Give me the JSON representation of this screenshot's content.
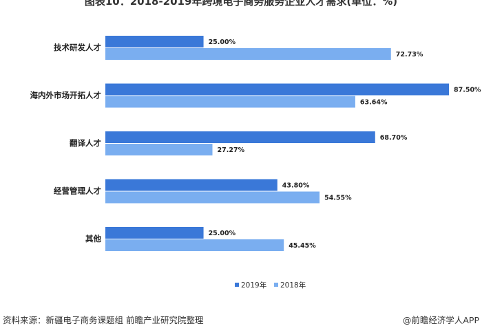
{
  "chart_data": {
    "type": "bar",
    "orientation": "horizontal",
    "title": "图表10：2018-2019年跨境电子商务服务企业人才需求(单位：%)",
    "categories": [
      "技术研发人才",
      "海内外市场开拓人才",
      "翻译人才",
      "经营管理人才",
      "其他"
    ],
    "series": [
      {
        "name": "2019年",
        "color": "#3a78d8",
        "values": [
          25.0,
          87.5,
          68.7,
          43.8,
          25.0
        ],
        "labels": [
          "25.00%",
          "87.50%",
          "68.70%",
          "43.80%",
          "25.00%"
        ]
      },
      {
        "name": "2018年",
        "color": "#7aaef0",
        "values": [
          72.73,
          63.64,
          27.27,
          54.55,
          45.45
        ],
        "labels": [
          "72.73%",
          "63.64%",
          "27.27%",
          "54.55%",
          "45.45%"
        ]
      }
    ],
    "xlim": [
      0,
      100
    ],
    "legend": "bottom-center",
    "grid": false
  },
  "footer": {
    "source": "资料来源：新疆电子商务课题组 前瞻产业研究院整理",
    "brand": "@前瞻经济学人APP"
  }
}
